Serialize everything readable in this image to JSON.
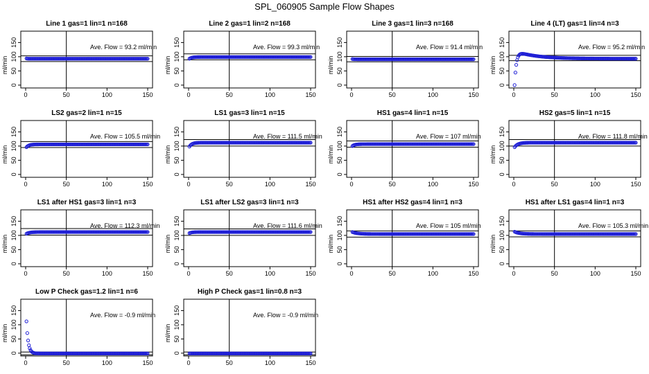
{
  "page": {
    "title": "SPL_060905  Sample Flow Shapes"
  },
  "colors": {
    "points": "#1f1fd6",
    "axes": "#000000",
    "background": "#ffffff"
  },
  "chart_data": [
    {
      "type": "scatter",
      "title": "Line 1 gas=1 lin=1 n=168",
      "ylabel": "ml/min",
      "annotation": "Ave. Flow =  93.2  ml/min",
      "xticks": [
        0,
        50,
        100,
        150
      ],
      "yticks": [
        0,
        50,
        100,
        150
      ],
      "xlim": [
        0,
        150
      ],
      "ylim": [
        -10,
        190
      ],
      "hlines": [
        103,
        83
      ],
      "vline": 50,
      "profile": {
        "start": 94,
        "steady": 93,
        "tau": 1
      }
    },
    {
      "type": "scatter",
      "title": "Line 2 gas=1 lin=2 n=168",
      "ylabel": "ml/min",
      "annotation": "Ave. Flow =  99.3  ml/min",
      "xticks": [
        0,
        50,
        100,
        150
      ],
      "yticks": [
        0,
        50,
        100,
        150
      ],
      "xlim": [
        0,
        150
      ],
      "ylim": [
        -10,
        190
      ],
      "hlines": [
        110,
        89
      ],
      "vline": 50,
      "profile": {
        "start": 93,
        "steady": 99,
        "tau": 3
      }
    },
    {
      "type": "scatter",
      "title": "Line 3 gas=1 lin=3 n=168",
      "ylabel": "ml/min",
      "annotation": "Ave. Flow =  91.4  ml/min",
      "xticks": [
        0,
        50,
        100,
        150
      ],
      "yticks": [
        0,
        50,
        100,
        150
      ],
      "xlim": [
        0,
        150
      ],
      "ylim": [
        -10,
        190
      ],
      "hlines": [
        101,
        82
      ],
      "vline": 50,
      "profile": {
        "start": 92,
        "steady": 91,
        "tau": 1
      }
    },
    {
      "type": "scatter",
      "title": "Line 4 (LT) gas=1 lin=4 n=3",
      "ylabel": "ml/min",
      "annotation": "Ave. Flow =  95.2  ml/min",
      "xticks": [
        0,
        50,
        100,
        150
      ],
      "yticks": [
        0,
        50,
        100,
        150
      ],
      "xlim": [
        0,
        150
      ],
      "ylim": [
        -10,
        190
      ],
      "hlines": [
        105,
        86
      ],
      "vline": 50,
      "profile": {
        "start": 0,
        "steady": 93,
        "tau": 2,
        "overshoot": 28,
        "os_tau": 25
      }
    },
    {
      "type": "scatter",
      "title": "LS2 gas=2 lin=1 n=15",
      "ylabel": "ml/min",
      "annotation": "Ave. Flow =  105.5  ml/min",
      "xticks": [
        0,
        50,
        100,
        150
      ],
      "yticks": [
        0,
        50,
        100,
        150
      ],
      "xlim": [
        0,
        150
      ],
      "ylim": [
        -10,
        190
      ],
      "hlines": [
        116,
        95
      ],
      "vline": 50,
      "profile": {
        "start": 96,
        "steady": 106,
        "tau": 3
      }
    },
    {
      "type": "scatter",
      "title": "LS1 gas=3 lin=1 n=15",
      "ylabel": "ml/min",
      "annotation": "Ave. Flow =  111.5  ml/min",
      "xticks": [
        0,
        50,
        100,
        150
      ],
      "yticks": [
        0,
        50,
        100,
        150
      ],
      "xlim": [
        0,
        150
      ],
      "ylim": [
        -10,
        190
      ],
      "hlines": [
        123,
        100
      ],
      "vline": 50,
      "profile": {
        "start": 98,
        "steady": 112,
        "tau": 3
      }
    },
    {
      "type": "scatter",
      "title": "HS1 gas=4 lin=1 n=15",
      "ylabel": "ml/min",
      "annotation": "Ave. Flow =  107  ml/min",
      "xticks": [
        0,
        50,
        100,
        150
      ],
      "yticks": [
        0,
        50,
        100,
        150
      ],
      "xlim": [
        0,
        150
      ],
      "ylim": [
        -10,
        190
      ],
      "hlines": [
        118,
        96
      ],
      "vline": 50,
      "profile": {
        "start": 100,
        "steady": 107,
        "tau": 3
      }
    },
    {
      "type": "scatter",
      "title": "HS2 gas=5 lin=1 n=15",
      "ylabel": "ml/min",
      "annotation": "Ave. Flow =  111.8  ml/min",
      "xticks": [
        0,
        50,
        100,
        150
      ],
      "yticks": [
        0,
        50,
        100,
        150
      ],
      "xlim": [
        0,
        150
      ],
      "ylim": [
        -10,
        190
      ],
      "hlines": [
        123,
        100
      ],
      "vline": 50,
      "profile": {
        "start": 96,
        "steady": 112,
        "tau": 4
      }
    },
    {
      "type": "scatter",
      "title": "LS1 after HS1 gas=3 lin=1 n=3",
      "ylabel": "ml/min",
      "annotation": "Ave. Flow =  112.3  ml/min",
      "xticks": [
        0,
        50,
        100,
        150
      ],
      "yticks": [
        0,
        50,
        100,
        150
      ],
      "xlim": [
        0,
        150
      ],
      "ylim": [
        -10,
        190
      ],
      "hlines": [
        124,
        101
      ],
      "vline": 50,
      "profile": {
        "start": 106,
        "steady": 112,
        "tau": 4
      }
    },
    {
      "type": "scatter",
      "title": "LS1 after LS2 gas=3 lin=1 n=3",
      "ylabel": "ml/min",
      "annotation": "Ave. Flow =  111.6  ml/min",
      "xticks": [
        0,
        50,
        100,
        150
      ],
      "yticks": [
        0,
        50,
        100,
        150
      ],
      "xlim": [
        0,
        150
      ],
      "ylim": [
        -10,
        190
      ],
      "hlines": [
        123,
        100
      ],
      "vline": 50,
      "profile": {
        "start": 108,
        "steady": 112,
        "tau": 3
      }
    },
    {
      "type": "scatter",
      "title": "HS1 after HS2 gas=4 lin=1 n=3",
      "ylabel": "ml/min",
      "annotation": "Ave. Flow =  105  ml/min",
      "xticks": [
        0,
        50,
        100,
        150
      ],
      "yticks": [
        0,
        50,
        100,
        150
      ],
      "xlim": [
        0,
        150
      ],
      "ylim": [
        -10,
        190
      ],
      "hlines": [
        116,
        94
      ],
      "vline": 50,
      "profile": {
        "start": 112,
        "steady": 105,
        "tau": 6
      }
    },
    {
      "type": "scatter",
      "title": "HS1 after LS1 gas=4 lin=1 n=3",
      "ylabel": "ml/min",
      "annotation": "Ave. Flow =  105.3  ml/min",
      "xticks": [
        0,
        50,
        100,
        150
      ],
      "yticks": [
        0,
        50,
        100,
        150
      ],
      "xlim": [
        0,
        150
      ],
      "ylim": [
        -10,
        190
      ],
      "hlines": [
        116,
        95
      ],
      "vline": 50,
      "profile": {
        "start": 113,
        "steady": 105,
        "tau": 6
      }
    },
    {
      "type": "scatter",
      "title": "Low P Check gas=1.2 lin=1 n=6",
      "ylabel": "ml/min",
      "annotation": "Ave. Flow =  -0.9  ml/min",
      "xticks": [
        0,
        50,
        100,
        150
      ],
      "yticks": [
        0,
        50,
        100,
        150
      ],
      "xlim": [
        0,
        150
      ],
      "ylim": [
        -10,
        190
      ],
      "hlines": [
        4,
        -6
      ],
      "vline": 50,
      "profile": {
        "start": 112,
        "steady": -1,
        "tau": 2.2
      }
    },
    {
      "type": "scatter",
      "title": "High P Check gas=1 lin=0.8 n=3",
      "ylabel": "ml/min",
      "annotation": "Ave. Flow =  -0.9  ml/min",
      "xticks": [
        0,
        50,
        100,
        150
      ],
      "yticks": [
        0,
        50,
        100,
        150
      ],
      "xlim": [
        0,
        150
      ],
      "ylim": [
        -10,
        190
      ],
      "hlines": [
        4,
        -6
      ],
      "vline": 50,
      "profile": {
        "start": -1,
        "steady": -1,
        "tau": 1
      }
    }
  ]
}
